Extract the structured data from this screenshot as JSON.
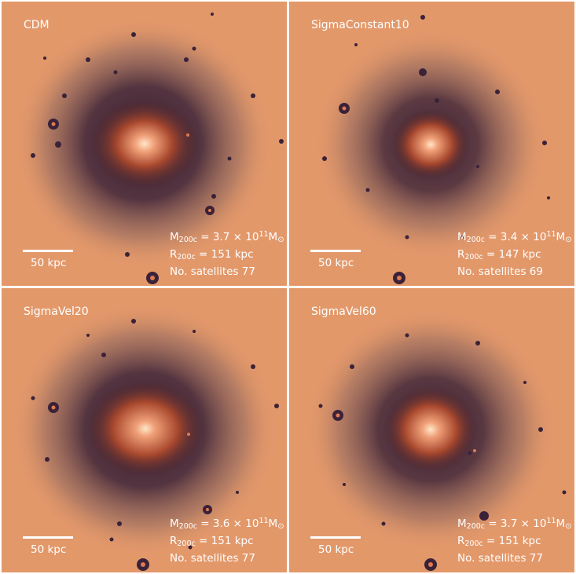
{
  "panels": [
    {
      "label": "CDM",
      "scale": "50 kpc",
      "mass_prefix": "M",
      "mass_sub": "200c",
      "mass_eq": " = 3.7 × 10",
      "mass_exp": "11",
      "mass_unit": "M",
      "mass_unit_sub": "⊙",
      "radius_prefix": "R",
      "radius_sub": "200c",
      "radius_eq": " = 151 kpc",
      "satellites": "No. satellites 77"
    },
    {
      "label": "SigmaConstant10",
      "scale": "50 kpc",
      "mass_prefix": "M",
      "mass_sub": "200c",
      "mass_eq": " = 3.4 × 10",
      "mass_exp": "11",
      "mass_unit": "M",
      "mass_unit_sub": "⊙",
      "radius_prefix": "R",
      "radius_sub": "200c",
      "radius_eq": " = 147 kpc",
      "satellites": "No. satellites 69"
    },
    {
      "label": "SigmaVel20",
      "scale": "50 kpc",
      "mass_prefix": "M",
      "mass_sub": "200c",
      "mass_eq": " = 3.6 × 10",
      "mass_exp": "11",
      "mass_unit": "M",
      "mass_unit_sub": "⊙",
      "radius_prefix": "R",
      "radius_sub": "200c",
      "radius_eq": " = 151 kpc",
      "satellites": "No. satellites 77"
    },
    {
      "label": "SigmaVel60",
      "scale": "50 kpc",
      "mass_prefix": "M",
      "mass_sub": "200c",
      "mass_eq": " = 3.7 × 10",
      "mass_exp": "11",
      "mass_unit": "M",
      "mass_unit_sub": "⊙",
      "radius_prefix": "R",
      "radius_sub": "200c",
      "radius_eq": " = 151 kpc",
      "satellites": "No. satellites 77"
    }
  ],
  "colors": {
    "background": "#e3986a",
    "halo_dark": "#2e1a30",
    "core": "#ffe6c8"
  }
}
